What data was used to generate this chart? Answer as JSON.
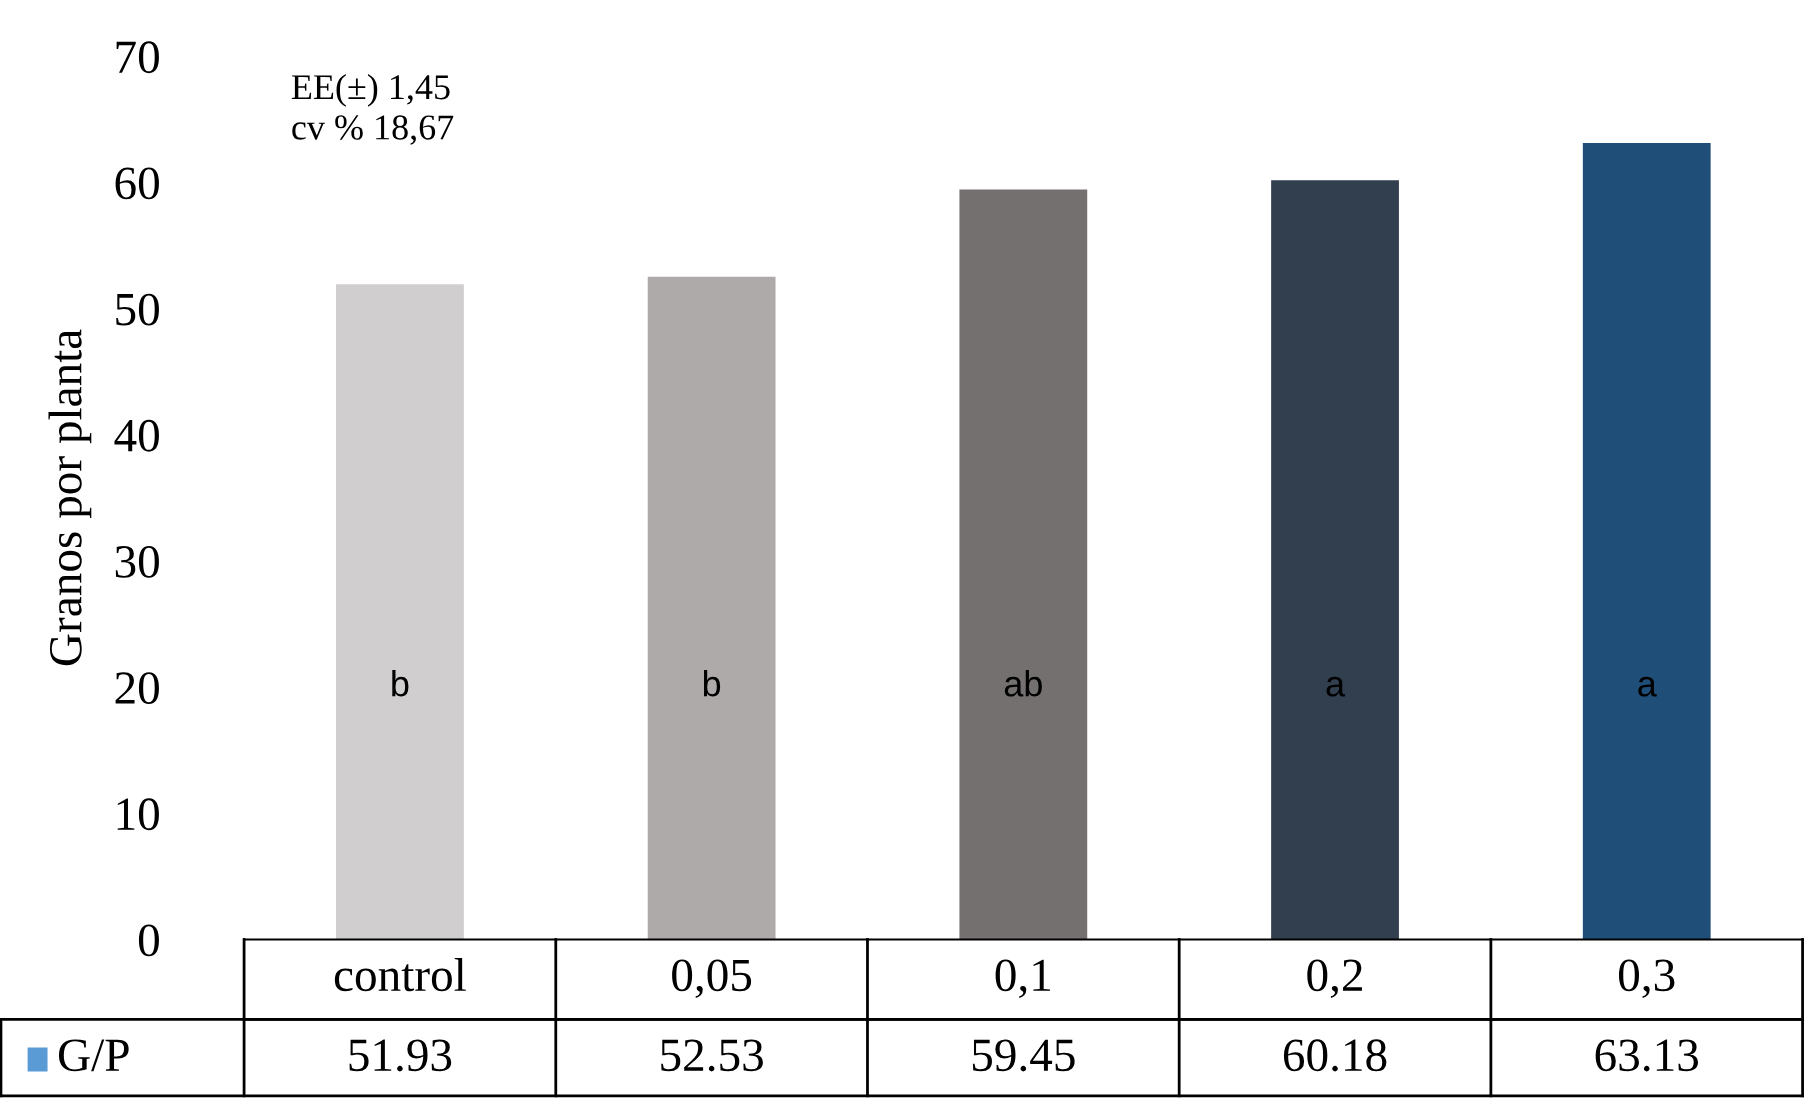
{
  "chart_data": {
    "type": "bar",
    "ylabel": "Granos por planta",
    "categories": [
      "control",
      "0,05",
      "0,1",
      "0,2",
      "0,3"
    ],
    "series": [
      {
        "name": "G/P",
        "color": "#5b9bd5",
        "colors": [
          "#d0cece",
          "#aeaaaa",
          "#747070",
          "#323f4f",
          "#1f4e79"
        ],
        "values": [
          51.93,
          52.53,
          59.45,
          60.18,
          63.13
        ]
      }
    ],
    "ylim": [
      0,
      70
    ],
    "yticks": [
      0,
      10,
      20,
      30,
      40,
      50,
      60,
      70
    ],
    "grid": false,
    "data_labels": true,
    "legend": "bottom left",
    "annotations": [
      "b",
      "b",
      "ab",
      "a",
      "a",
      "EE(±) 1,45\ncv % 18,67"
    ]
  }
}
